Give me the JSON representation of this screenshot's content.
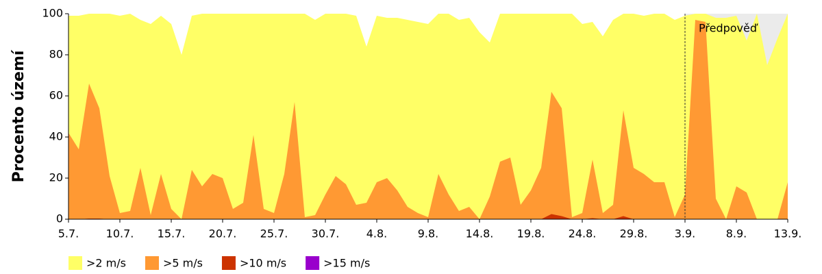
{
  "chart_data": {
    "type": "area",
    "y_label": "Procento území",
    "categories": [
      "5.7.",
      null,
      null,
      null,
      null,
      "10.7.",
      null,
      null,
      null,
      null,
      "15.7.",
      null,
      null,
      null,
      null,
      "20.7.",
      null,
      null,
      null,
      null,
      "25.7.",
      null,
      null,
      null,
      null,
      "30.7.",
      null,
      null,
      null,
      null,
      "4.8.",
      null,
      null,
      null,
      null,
      "9.8.",
      null,
      null,
      null,
      null,
      "14.8.",
      null,
      null,
      null,
      null,
      "19.8.",
      null,
      null,
      null,
      null,
      "24.8.",
      null,
      null,
      null,
      null,
      "29.8.",
      null,
      null,
      null,
      null,
      "3.9.",
      null,
      null,
      null,
      null,
      "8.9.",
      null,
      null,
      null,
      null,
      "13.9."
    ],
    "series": [
      {
        "name": ">2 m/s",
        "color": "#ffff66",
        "values": [
          99,
          99,
          100,
          100,
          100,
          99,
          100,
          97,
          95,
          99,
          95,
          80,
          99,
          100,
          100,
          100,
          100,
          100,
          100,
          100,
          100,
          100,
          100,
          100,
          97,
          100,
          100,
          100,
          99,
          84,
          99,
          98,
          98,
          97,
          96,
          95,
          100,
          100,
          97,
          98,
          91,
          86,
          100,
          100,
          100,
          100,
          100,
          100,
          100,
          100,
          95,
          96,
          89,
          97,
          100,
          100,
          99,
          100,
          100,
          97,
          99,
          100,
          100,
          98,
          98,
          99,
          87,
          100,
          75,
          88,
          100
        ]
      },
      {
        "name": ">5 m/s",
        "color": "#ff9933",
        "values": [
          42,
          34,
          66,
          54,
          21,
          3,
          4,
          25,
          2,
          22,
          5,
          0,
          24,
          16,
          22,
          20,
          5,
          8,
          41,
          5,
          3,
          22,
          57,
          1,
          2,
          12,
          21,
          17,
          7,
          8,
          18,
          20,
          14,
          6,
          3,
          1,
          22,
          12,
          4,
          6,
          0,
          11,
          28,
          30,
          7,
          14,
          25,
          62,
          54,
          1,
          3,
          29,
          3,
          7,
          53,
          25,
          22,
          18,
          18,
          1,
          12,
          97,
          96,
          10,
          0,
          16,
          13,
          0,
          0,
          0,
          18
        ]
      },
      {
        "name": ">10 m/s",
        "color": "#cc3300",
        "values": [
          0,
          0,
          0.3,
          0.3,
          0,
          0,
          0,
          0,
          0,
          0,
          0,
          0,
          0,
          0,
          0,
          0,
          0,
          0,
          0,
          0,
          0,
          0,
          0,
          0,
          0,
          0,
          0,
          0,
          0,
          0,
          0,
          0,
          0,
          0,
          0,
          0,
          0,
          0,
          0,
          0,
          0,
          0,
          0,
          0,
          0,
          0,
          0,
          2.5,
          1.5,
          0,
          0,
          0.5,
          0,
          0,
          1.5,
          0,
          0,
          0,
          0,
          0,
          0,
          0,
          0,
          0,
          0,
          0,
          0,
          0,
          0,
          0,
          0
        ]
      },
      {
        "name": ">15 m/s",
        "color": "#9900cc",
        "values": [
          0,
          0,
          0,
          0,
          0,
          0,
          0,
          0,
          0,
          0,
          0,
          0,
          0,
          0,
          0,
          0,
          0,
          0,
          0,
          0,
          0,
          0,
          0,
          0,
          0,
          0,
          0,
          0,
          0,
          0,
          0,
          0,
          0,
          0,
          0,
          0,
          0,
          0,
          0,
          0,
          0,
          0,
          0,
          0,
          0,
          0,
          0,
          0,
          0,
          0,
          0,
          0,
          0,
          0,
          0,
          0,
          0,
          0,
          0,
          0,
          0,
          0,
          0,
          0,
          0,
          0,
          0,
          0,
          0,
          0,
          0
        ]
      }
    ],
    "forecast": {
      "label": "Předpověď",
      "category": "3.9.",
      "color": "#ebebeb"
    },
    "ylim": [
      0,
      100
    ],
    "yticks": [
      0,
      20,
      40,
      60,
      80,
      100
    ],
    "grid": false
  }
}
